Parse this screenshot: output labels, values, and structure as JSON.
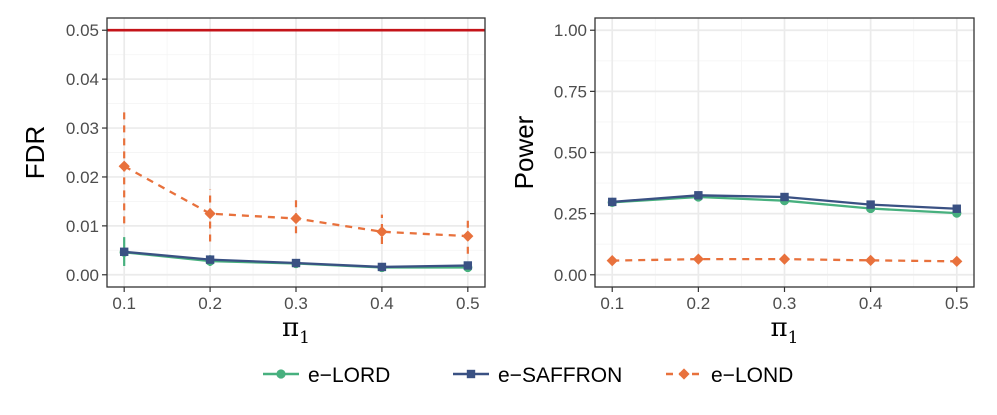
{
  "colors": {
    "e_lord": "#47b07e",
    "e_saffron": "#3a5183",
    "e_lond": "#e8713c",
    "reference": "#c4141a",
    "grid_major": "#ebebeb",
    "grid_minor": "#f5f5f5",
    "panel_border": "#333333"
  },
  "chart_data": [
    {
      "type": "line",
      "panel": "fdr",
      "xlabel_base": "π",
      "xlabel_sub": "1",
      "ylabel": "FDR",
      "x": [
        0.1,
        0.2,
        0.3,
        0.4,
        0.5
      ],
      "x_ticks": [
        "0.1",
        "0.2",
        "0.3",
        "0.4",
        "0.5"
      ],
      "xlim": [
        0.08,
        0.52
      ],
      "ylim": [
        -0.0025,
        0.0525
      ],
      "y_ticks": [
        "0.00",
        "0.01",
        "0.02",
        "0.03",
        "0.04",
        "0.05"
      ],
      "y_tick_values": [
        0,
        0.01,
        0.02,
        0.03,
        0.04,
        0.05
      ],
      "reference_line": 0.05,
      "series": [
        {
          "name": "e-LORD",
          "key": "e_lord",
          "values": [
            0.0046,
            0.0028,
            0.0023,
            0.0015,
            0.0015
          ],
          "err_low": [
            0.0018,
            0.0018,
            0.0018,
            0.0011,
            0.001
          ],
          "err_high": [
            0.0077,
            0.004,
            0.0029,
            0.0019,
            0.002
          ],
          "marker": "circle",
          "dash": "solid"
        },
        {
          "name": "e-SAFFRON",
          "key": "e_saffron",
          "values": [
            0.0047,
            0.0031,
            0.0024,
            0.0016,
            0.0019
          ],
          "err_low": [
            0.0047,
            0.0031,
            0.0024,
            0.0016,
            0.0019
          ],
          "err_high": [
            0.0047,
            0.0031,
            0.0024,
            0.0016,
            0.0019
          ],
          "marker": "square",
          "dash": "solid"
        },
        {
          "name": "e-LOND",
          "key": "e_lond",
          "values": [
            0.0222,
            0.0125,
            0.0115,
            0.0088,
            0.0079
          ],
          "err_low": [
            0.0105,
            0.0068,
            0.0085,
            0.0063,
            0.0043
          ],
          "err_high": [
            0.0335,
            0.0175,
            0.016,
            0.0123,
            0.0115
          ],
          "marker": "diamond",
          "dash": "dashed"
        }
      ]
    },
    {
      "type": "line",
      "panel": "power",
      "xlabel_base": "π",
      "xlabel_sub": "1",
      "ylabel": "Power",
      "x": [
        0.1,
        0.2,
        0.3,
        0.4,
        0.5
      ],
      "x_ticks": [
        "0.1",
        "0.2",
        "0.3",
        "0.4",
        "0.5"
      ],
      "xlim": [
        0.08,
        0.52
      ],
      "ylim": [
        -0.05,
        1.05
      ],
      "y_ticks": [
        "0.00",
        "0.25",
        "0.50",
        "0.75",
        "1.00"
      ],
      "y_tick_values": [
        0,
        0.25,
        0.5,
        0.75,
        1.0
      ],
      "series": [
        {
          "name": "e-LORD",
          "key": "e_lord",
          "values": [
            0.296,
            0.318,
            0.303,
            0.271,
            0.252
          ],
          "marker": "circle",
          "dash": "solid"
        },
        {
          "name": "e-SAFFRON",
          "key": "e_saffron",
          "values": [
            0.298,
            0.325,
            0.318,
            0.287,
            0.27
          ],
          "marker": "square",
          "dash": "solid"
        },
        {
          "name": "e-LOND",
          "key": "e_lond",
          "values": [
            0.058,
            0.064,
            0.064,
            0.059,
            0.055
          ],
          "marker": "diamond",
          "dash": "dashed"
        }
      ]
    }
  ],
  "legend": {
    "placement": "bottom",
    "entries": [
      {
        "label": "e−LORD",
        "key": "e_lord",
        "marker": "circle",
        "dash": "solid"
      },
      {
        "label": "e−SAFFRON",
        "key": "e_saffron",
        "marker": "square",
        "dash": "solid"
      },
      {
        "label": "e−LOND",
        "key": "e_lond",
        "marker": "diamond",
        "dash": "dashed"
      }
    ]
  }
}
